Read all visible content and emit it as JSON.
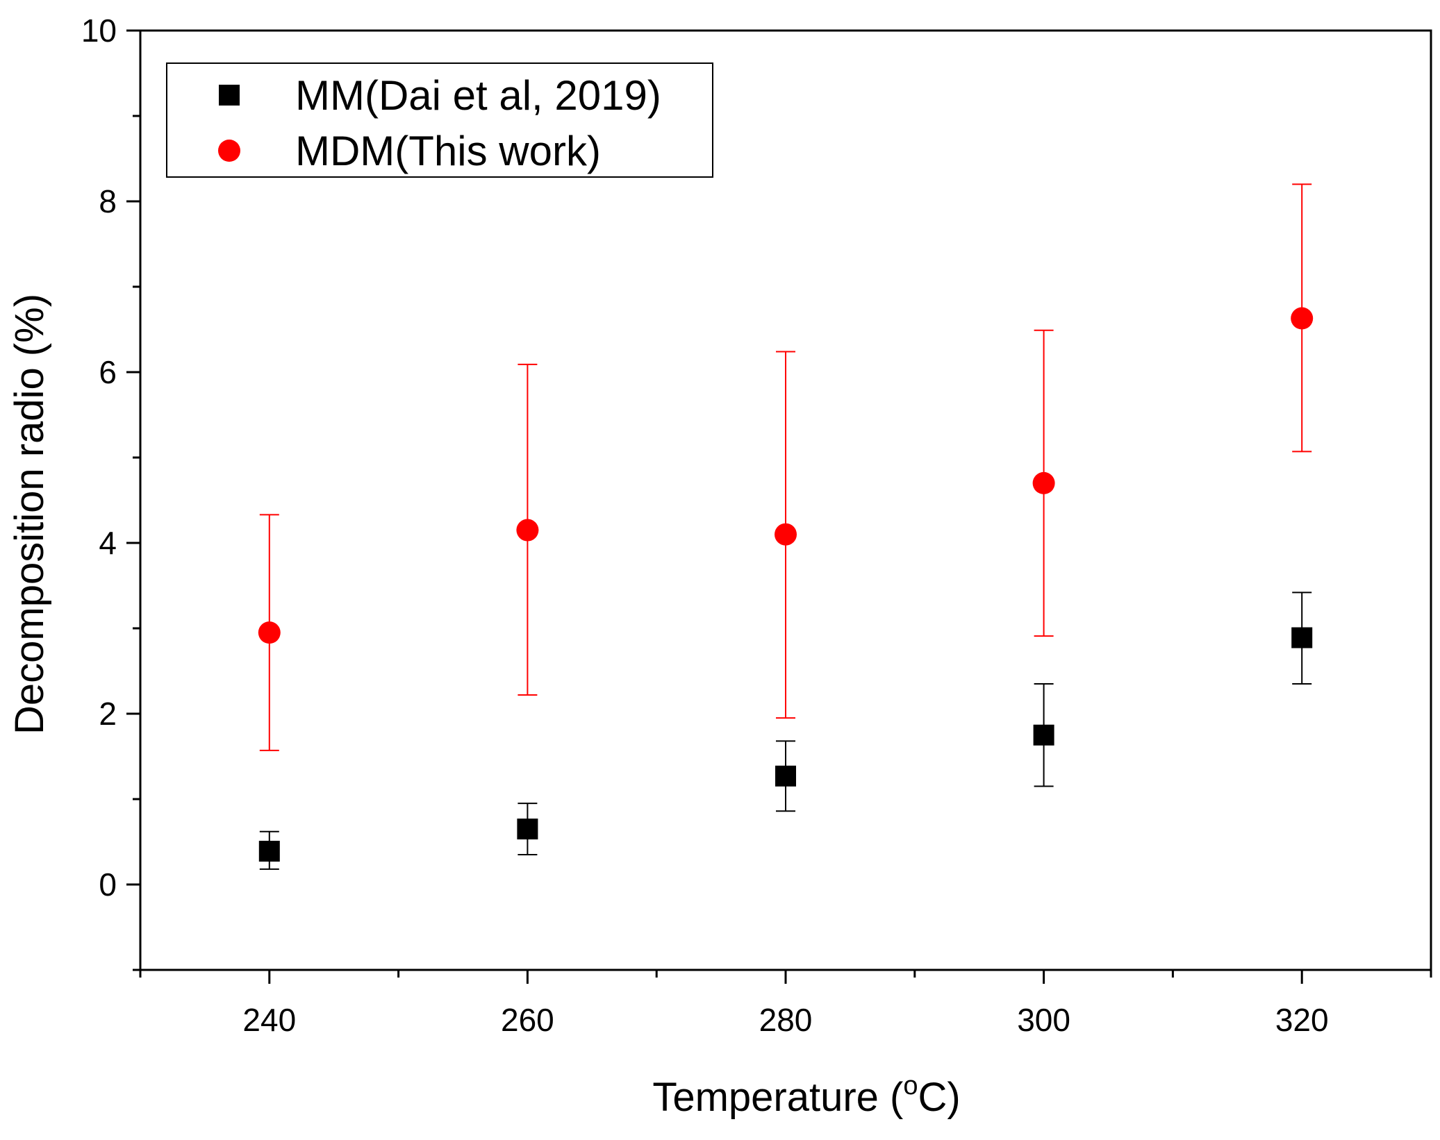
{
  "chart_data": {
    "type": "scatter",
    "title": "",
    "xlabel": "Temperature (oC)",
    "xlabel_parts": {
      "pre": "Temperature (",
      "sup": "o",
      "post": "C)"
    },
    "ylabel": "Decomposition radio (%)",
    "xlim": [
      230,
      330
    ],
    "ylim": [
      -1,
      10
    ],
    "x_ticks": [
      240,
      260,
      280,
      300,
      320
    ],
    "y_ticks": [
      0,
      2,
      4,
      6,
      8,
      10
    ],
    "x_tick_labels": [
      "240",
      "260",
      "280",
      "300",
      "320"
    ],
    "y_tick_labels": [
      "0",
      "2",
      "4",
      "6",
      "8",
      "10"
    ],
    "grid": false,
    "legend_position": "top-left",
    "series": [
      {
        "name": "MM(Dai et al, 2019)",
        "marker": "square",
        "color": "#000000",
        "x": [
          240,
          260,
          280,
          300,
          320
        ],
        "y": [
          0.39,
          0.65,
          1.27,
          1.75,
          2.89
        ],
        "err_low": [
          0.18,
          0.35,
          0.86,
          1.15,
          2.35
        ],
        "err_high": [
          0.62,
          0.95,
          1.68,
          2.35,
          3.42
        ]
      },
      {
        "name": "MDM(This work)",
        "marker": "circle",
        "color": "#ff0000",
        "x": [
          240,
          260,
          280,
          300,
          320
        ],
        "y": [
          2.95,
          4.15,
          4.1,
          4.7,
          6.63
        ],
        "err_low": [
          1.57,
          2.22,
          1.95,
          2.91,
          5.07
        ],
        "err_high": [
          4.33,
          6.09,
          6.24,
          6.49,
          8.2
        ]
      }
    ]
  }
}
